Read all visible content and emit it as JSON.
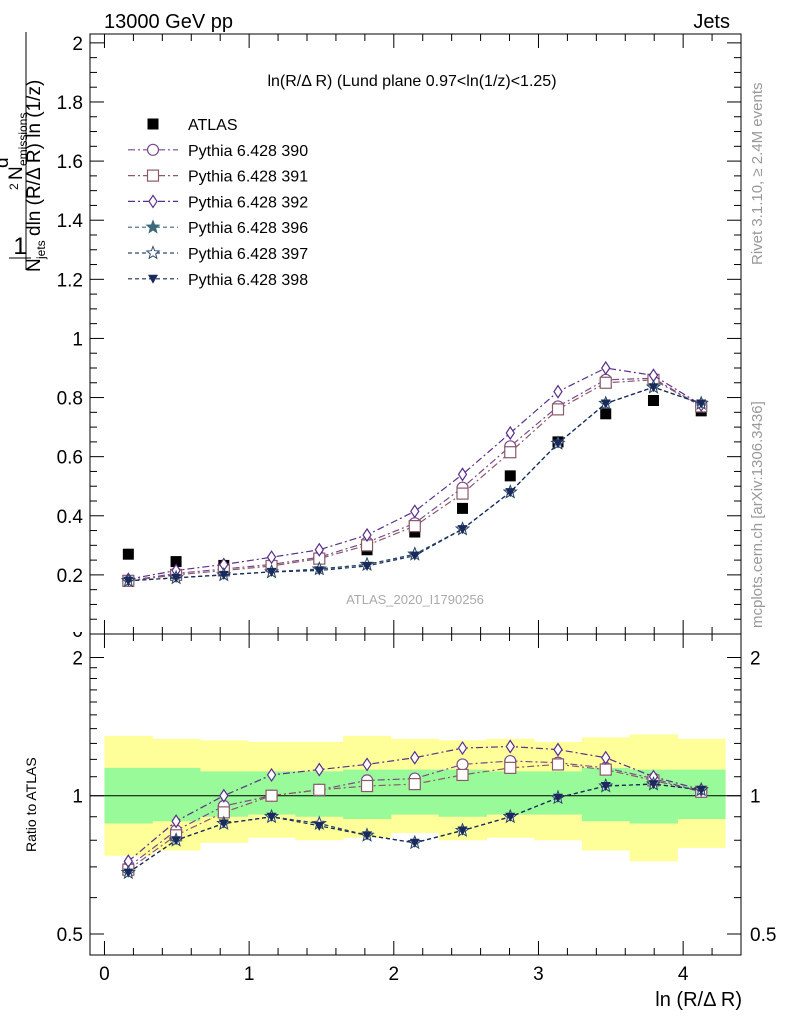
{
  "header": {
    "left": "13000 GeV pp",
    "right": "Jets"
  },
  "title": "ln(R/Δ R) (Lund plane 0.97<ln(1/z)<1.25)",
  "side_texts": {
    "rivet": "Rivet 3.1.10, ≥ 2.4M events",
    "mcplots": "mcplots.cern.ch [arXiv:1306.3436]"
  },
  "watermark": "ATLAS_2020_I1790256",
  "ylabel_main": "1/N_jets d²N_emissions/dln(R/Δ R) ln(1/z)",
  "ylabel_ratio": "Ratio to ATLAS",
  "xlabel": "ln (R/Δ R)",
  "colors": {
    "atlas": "#000000",
    "p390": "#7a4a8a",
    "p391": "#8a5a6a",
    "p392": "#5a2f8a",
    "p396": "#3c6a7a",
    "p397": "#2c4a6a",
    "p398": "#1a2a5a",
    "band_inner": "#99fa99",
    "band_outer": "#ffff99",
    "side_text": "#999999"
  },
  "chart_data": {
    "type": "scatter",
    "x": [
      0.165,
      0.495,
      0.825,
      1.155,
      1.485,
      1.815,
      2.145,
      2.475,
      2.805,
      3.135,
      3.465,
      3.795,
      4.125
    ],
    "xlim": [
      -0.1,
      4.4
    ],
    "xticks": [
      "0",
      "1",
      "2",
      "3",
      "4"
    ],
    "main": {
      "ylim": [
        0,
        2.03
      ],
      "yticks": [
        "0.2",
        "0.4",
        "0.6",
        "0.8",
        "1",
        "1.2",
        "1.4",
        "1.6",
        "1.8",
        "2"
      ],
      "series": [
        {
          "name": "ATLAS",
          "marker": "square",
          "values": [
            0.27,
            0.245,
            0.232,
            0.23,
            0.255,
            0.285,
            0.345,
            0.425,
            0.535,
            0.65,
            0.745,
            0.79,
            0.755
          ]
        },
        {
          "name": "Pythia 6.428 390",
          "marker": "circle",
          "values": [
            0.18,
            0.205,
            0.22,
            0.235,
            0.26,
            0.31,
            0.375,
            0.495,
            0.635,
            0.77,
            0.86,
            0.865,
            0.77
          ]
        },
        {
          "name": "Pythia 6.428 391",
          "marker": "square-open",
          "values": [
            0.18,
            0.2,
            0.215,
            0.23,
            0.255,
            0.3,
            0.365,
            0.475,
            0.615,
            0.76,
            0.85,
            0.86,
            0.77
          ]
        },
        {
          "name": "Pythia 6.428 392",
          "marker": "diamond",
          "values": [
            0.185,
            0.215,
            0.235,
            0.26,
            0.285,
            0.335,
            0.415,
            0.54,
            0.68,
            0.82,
            0.9,
            0.875,
            0.775
          ]
        },
        {
          "name": "Pythia 6.428 396",
          "marker": "star",
          "values": [
            0.18,
            0.19,
            0.2,
            0.21,
            0.22,
            0.235,
            0.27,
            0.355,
            0.48,
            0.645,
            0.78,
            0.835,
            0.78
          ]
        },
        {
          "name": "Pythia 6.428 397",
          "marker": "star-open",
          "values": [
            0.18,
            0.19,
            0.2,
            0.21,
            0.22,
            0.235,
            0.27,
            0.355,
            0.48,
            0.645,
            0.78,
            0.835,
            0.78
          ]
        },
        {
          "name": "Pythia 6.428 398",
          "marker": "triangle-down",
          "values": [
            0.18,
            0.19,
            0.2,
            0.21,
            0.215,
            0.23,
            0.265,
            0.355,
            0.48,
            0.645,
            0.78,
            0.835,
            0.78
          ]
        }
      ]
    },
    "ratio": {
      "ylim": [
        0.45,
        2.25
      ],
      "yscale": "log",
      "yticks": [
        "0.5",
        "1",
        "2"
      ],
      "band_outer": [
        [
          0.74,
          1.35
        ],
        [
          0.76,
          1.33
        ],
        [
          0.79,
          1.32
        ],
        [
          0.81,
          1.31
        ],
        [
          0.8,
          1.31
        ],
        [
          0.81,
          1.35
        ],
        [
          0.83,
          1.33
        ],
        [
          0.8,
          1.32
        ],
        [
          0.81,
          1.33
        ],
        [
          0.8,
          1.31
        ],
        [
          0.76,
          1.34
        ],
        [
          0.72,
          1.36
        ],
        [
          0.77,
          1.33
        ]
      ],
      "band_inner": [
        [
          0.87,
          1.15
        ],
        [
          0.88,
          1.15
        ],
        [
          0.9,
          1.13
        ],
        [
          0.91,
          1.13
        ],
        [
          0.9,
          1.13
        ],
        [
          0.89,
          1.14
        ],
        [
          0.91,
          1.14
        ],
        [
          0.9,
          1.14
        ],
        [
          0.91,
          1.13
        ],
        [
          0.91,
          1.13
        ],
        [
          0.88,
          1.15
        ],
        [
          0.87,
          1.14
        ],
        [
          0.89,
          1.14
        ]
      ],
      "series": [
        {
          "name": "Pythia 6.428 390",
          "values": [
            0.7,
            0.84,
            0.95,
            1.0,
            1.03,
            1.08,
            1.09,
            1.17,
            1.19,
            1.18,
            1.15,
            1.09,
            1.02
          ]
        },
        {
          "name": "Pythia 6.428 391",
          "values": [
            0.69,
            0.82,
            0.92,
            1.0,
            1.03,
            1.05,
            1.06,
            1.11,
            1.15,
            1.17,
            1.14,
            1.08,
            1.02
          ]
        },
        {
          "name": "Pythia 6.428 392",
          "values": [
            0.72,
            0.88,
            1.0,
            1.11,
            1.14,
            1.17,
            1.21,
            1.27,
            1.28,
            1.26,
            1.21,
            1.1,
            1.03
          ]
        },
        {
          "name": "Pythia 6.428 396",
          "values": [
            0.68,
            0.8,
            0.87,
            0.9,
            0.87,
            0.82,
            0.79,
            0.84,
            0.9,
            0.99,
            1.05,
            1.06,
            1.03
          ]
        },
        {
          "name": "Pythia 6.428 397",
          "values": [
            0.68,
            0.8,
            0.87,
            0.9,
            0.87,
            0.82,
            0.79,
            0.84,
            0.9,
            0.99,
            1.05,
            1.06,
            1.03
          ]
        },
        {
          "name": "Pythia 6.428 398",
          "values": [
            0.68,
            0.8,
            0.87,
            0.9,
            0.86,
            0.82,
            0.79,
            0.84,
            0.9,
            0.99,
            1.05,
            1.06,
            1.03
          ]
        }
      ]
    }
  }
}
